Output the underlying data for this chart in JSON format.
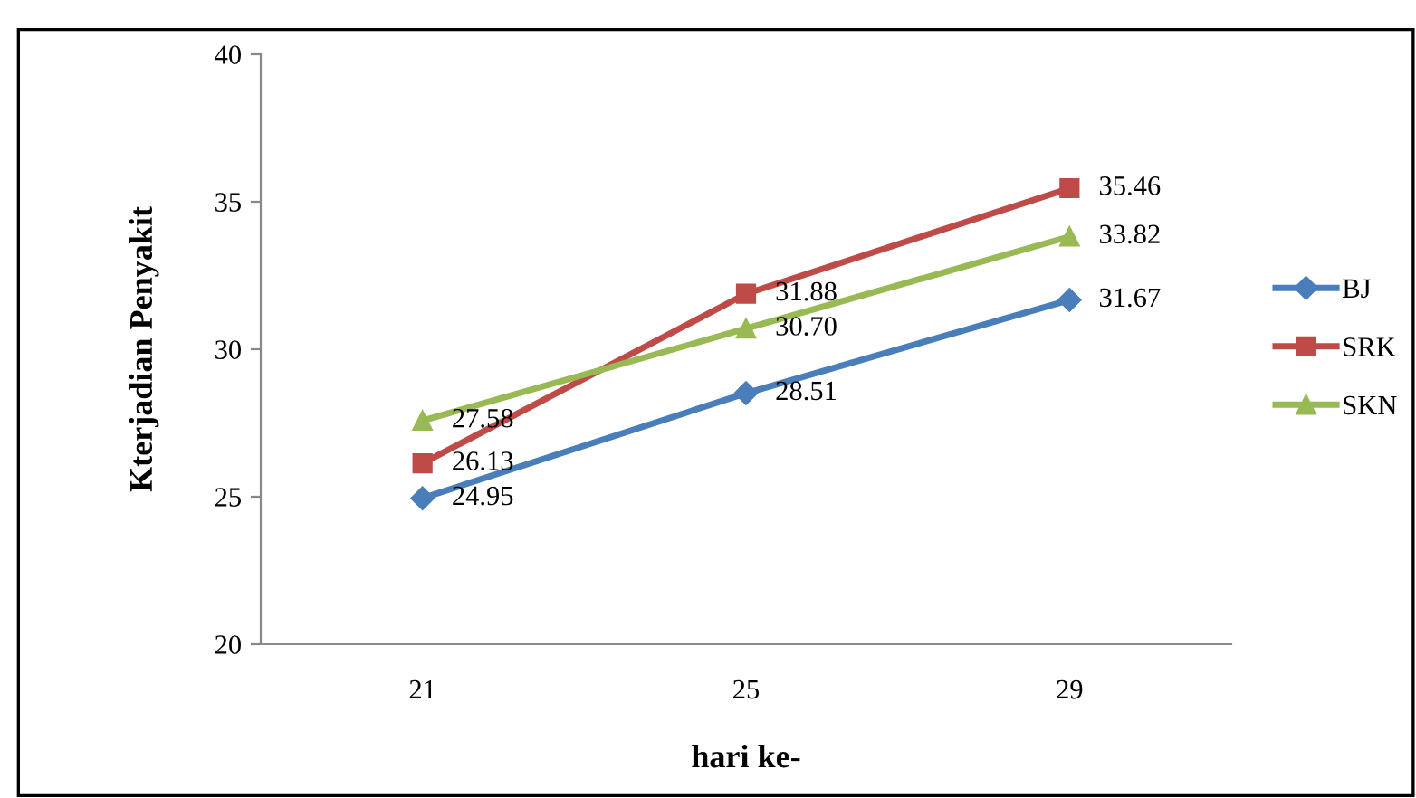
{
  "chart_data": {
    "type": "line",
    "xlabel": "hari ke-",
    "ylabel": "Kterjadian Penyakit",
    "categories": [
      "21",
      "25",
      "29"
    ],
    "series": [
      {
        "name": "BJ",
        "color": "#4a7ebb",
        "values": [
          24.95,
          28.51,
          31.67
        ],
        "value_labels": [
          "24.95",
          "28.51",
          "31.67"
        ],
        "marker": "diamond"
      },
      {
        "name": "SRK",
        "color": "#be4b48",
        "values": [
          26.13,
          31.88,
          35.46
        ],
        "value_labels": [
          "26.13",
          "31.88",
          "35.46"
        ],
        "marker": "square"
      },
      {
        "name": "SKN",
        "color": "#98b954",
        "values": [
          27.58,
          30.7,
          33.82
        ],
        "value_labels": [
          "27.58",
          "30.70",
          "33.82"
        ],
        "marker": "triangle"
      }
    ],
    "ylim": [
      20,
      40
    ],
    "yticks": [
      20,
      25,
      30,
      35,
      40
    ],
    "grid": false,
    "legend": "right",
    "line_style": "solid"
  }
}
